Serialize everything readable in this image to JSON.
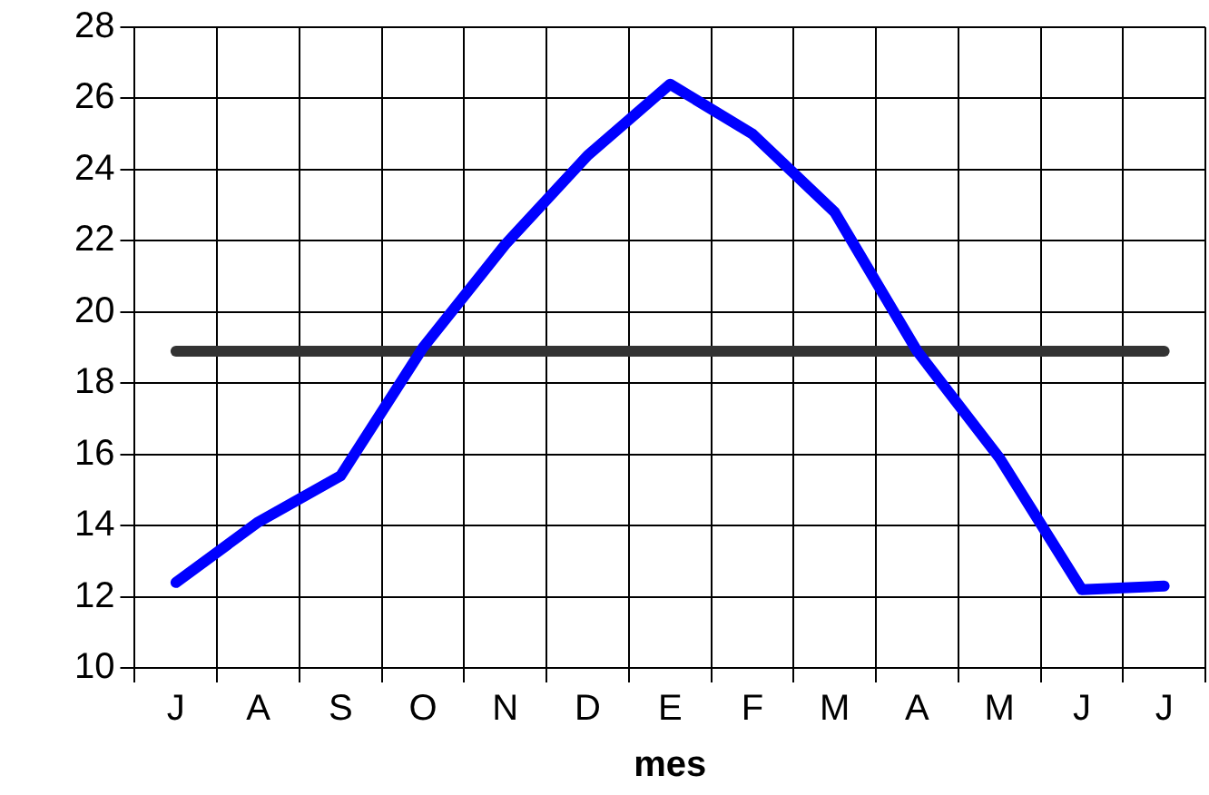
{
  "chart_data": {
    "type": "line",
    "xlabel": "mes",
    "categories": [
      "J",
      "A",
      "S",
      "O",
      "N",
      "D",
      "E",
      "F",
      "M",
      "A",
      "M",
      "J",
      "J"
    ],
    "series": [
      {
        "color": "#0000ff",
        "values": [
          12.4,
          14.1,
          15.4,
          19.0,
          21.9,
          24.4,
          26.4,
          25.0,
          22.8,
          18.9,
          15.9,
          12.2,
          12.3
        ]
      },
      {
        "color": "#333333",
        "values": [
          18.9,
          18.9,
          18.9,
          18.9,
          18.9,
          18.9,
          18.9,
          18.9,
          18.9,
          18.9,
          18.9,
          18.9,
          18.9
        ]
      }
    ],
    "ylim": [
      10,
      28
    ],
    "yticks": [
      10,
      12,
      14,
      16,
      18,
      20,
      22,
      24,
      26,
      28
    ],
    "grid": true,
    "legend": false,
    "marker": "none",
    "line_style": "solid"
  }
}
